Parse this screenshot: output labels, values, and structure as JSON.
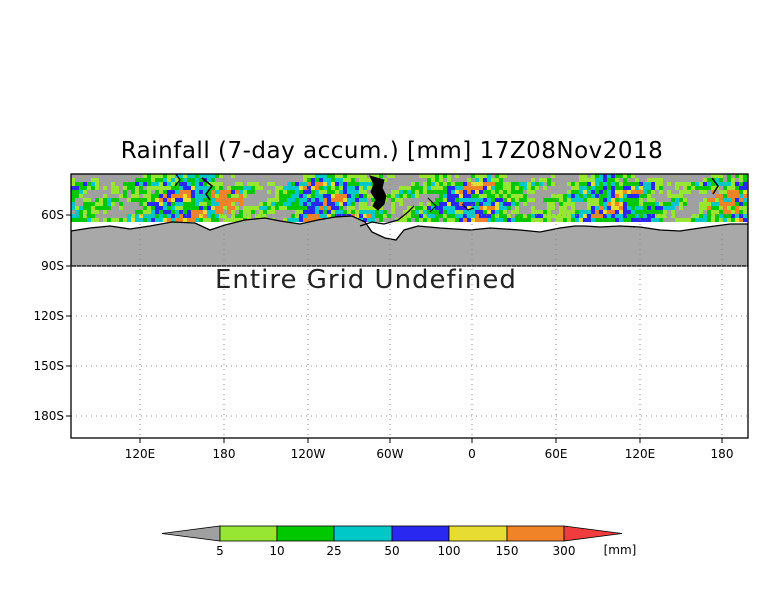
{
  "title": "Rainfall (7-day accum.) [mm] 17Z08Nov2018",
  "undefined_message": "Entire Grid Undefined",
  "y_axis": {
    "ticks": [
      "60S",
      "90S",
      "120S",
      "150S",
      "180S"
    ]
  },
  "x_axis": {
    "ticks": [
      "120E",
      "180",
      "120W",
      "60W",
      "0",
      "60E",
      "120E",
      "180"
    ]
  },
  "colorbar": {
    "unit": "[mm]",
    "levels": [
      "5",
      "10",
      "25",
      "50",
      "100",
      "150",
      "300"
    ],
    "colors": [
      "#a0a0a0",
      "#96e632",
      "#00c800",
      "#00c8c8",
      "#2828f0",
      "#e6dc32",
      "#f08228",
      "#f03c3c"
    ]
  },
  "colors": {
    "land": "#a8a8a8",
    "no_rain": "#a8a8a8",
    "grid": "#888888"
  }
}
